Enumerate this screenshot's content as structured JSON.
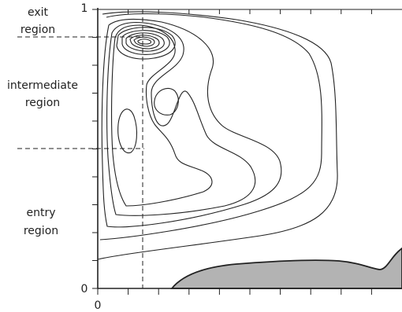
{
  "region_labels": {
    "exit_line1": "exit",
    "exit_line2": "region",
    "intermediate_line1": "intermediate",
    "intermediate_line2": "region",
    "entry_line1": "entry",
    "entry_line2": "region"
  },
  "axis_labels": {
    "y_top": "1",
    "y_bottom": "0",
    "x_origin": "0"
  },
  "colors": {
    "ink": "#222222",
    "shaded_region": "#b3b3b3"
  }
}
